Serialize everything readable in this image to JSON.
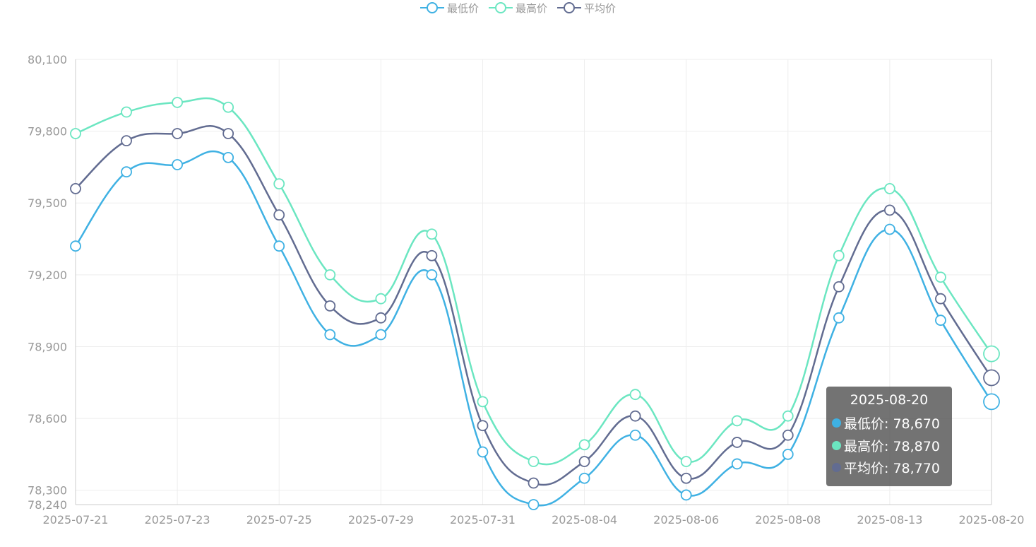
{
  "colors": {
    "series": [
      "#3fb1e3",
      "#6be6c1",
      "#626c91"
    ],
    "grid": "#eeeeee",
    "axis": "#cccccc",
    "label": "#999999",
    "tooltip_bg": "rgba(80,80,80,0.8)"
  },
  "legend": {
    "items": [
      {
        "name": "最低价",
        "color": "#3fb1e3"
      },
      {
        "name": "最高价",
        "color": "#6be6c1"
      },
      {
        "name": "平均价",
        "color": "#626c91"
      }
    ],
    "position": "top-center"
  },
  "tooltip": {
    "date": "2025-08-20",
    "rows": [
      {
        "label": "最低价: 78,670",
        "color": "#3fb1e3"
      },
      {
        "label": "最高价: 78,870",
        "color": "#6be6c1"
      },
      {
        "label": "平均价: 78,770",
        "color": "#626c91"
      }
    ]
  },
  "chart_data": {
    "type": "line",
    "title": "",
    "xlabel": "",
    "ylabel": "",
    "grid": true,
    "smooth": true,
    "x": [
      "2025-07-21",
      "2025-07-22",
      "2025-07-23",
      "2025-07-24",
      "2025-07-25",
      "2025-07-28",
      "2025-07-29",
      "2025-07-30",
      "2025-07-31",
      "2025-08-01",
      "2025-08-04",
      "2025-08-05",
      "2025-08-06",
      "2025-08-07",
      "2025-08-08",
      "2025-08-11",
      "2025-08-13",
      "2025-08-14",
      "2025-08-20"
    ],
    "x_tick_labels": [
      "2025-07-21",
      "2025-07-23",
      "2025-07-25",
      "2025-07-29",
      "2025-07-31",
      "2025-08-04",
      "2025-08-06",
      "2025-08-08",
      "2025-08-13",
      "2025-08-20"
    ],
    "x_tick_labels_rendered": [
      "2025-07-21",
      "2025-07-23",
      "2025-07-25",
      "2025-07-29",
      "2025-07-31",
      "2025-08-04",
      "2025-08-06",
      "2025-08-08",
      "2025-08-13",
      "2025-08-20"
    ],
    "ylim": [
      78240,
      80100
    ],
    "y_ticks": [
      78240,
      78300,
      78600,
      78900,
      79200,
      79500,
      79800,
      80100
    ],
    "y_tick_labels": [
      "78,240",
      "78,300",
      "78,600",
      "78,900",
      "79,200",
      "79,500",
      "79,800",
      "80,100"
    ],
    "series": [
      {
        "name": "最低价",
        "color": "#3fb1e3",
        "values": [
          79320,
          79630,
          79660,
          79690,
          79320,
          78950,
          78950,
          79200,
          78460,
          78240,
          78350,
          78530,
          78280,
          78410,
          78450,
          79020,
          79390,
          79010,
          78670
        ]
      },
      {
        "name": "最高价",
        "color": "#6be6c1",
        "values": [
          79790,
          79880,
          79920,
          79900,
          79580,
          79200,
          79100,
          79370,
          78670,
          78420,
          78490,
          78700,
          78420,
          78590,
          78610,
          79280,
          79560,
          79190,
          78870
        ]
      },
      {
        "name": "平均价",
        "color": "#626c91",
        "values": [
          79560,
          79760,
          79790,
          79790,
          79450,
          79070,
          79020,
          79280,
          78570,
          78330,
          78420,
          78610,
          78350,
          78500,
          78530,
          79150,
          79470,
          79100,
          78770
        ]
      }
    ],
    "highlighted_index": 18
  }
}
